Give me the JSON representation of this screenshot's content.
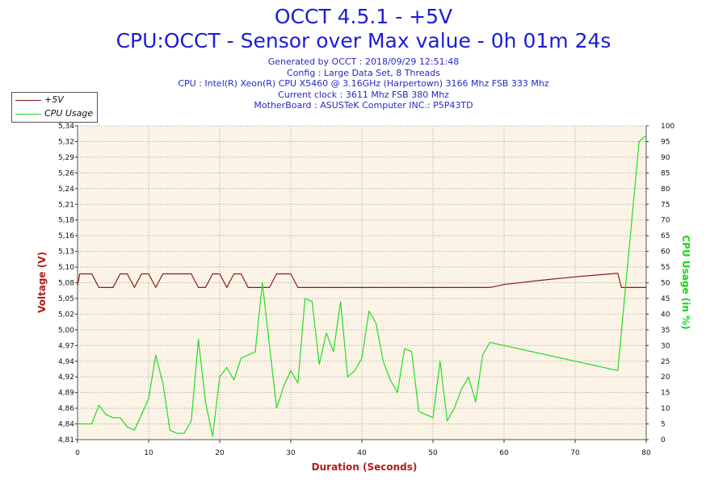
{
  "header": {
    "title": "OCCT 4.5.1 - +5V",
    "subtitle": "CPU:OCCT - Sensor over Max value - 0h 01m 24s",
    "info_lines": [
      "Generated by OCCT : 2018/09/29 12:51:48",
      "Config : Large Data Set, 8 Threads",
      "CPU : Intel(R) Xeon(R) CPU X5460 @ 3.16GHz (Harpertown) 3166 Mhz FSB 333 Mhz",
      "Current clock : 3611 Mhz FSB 380 Mhz",
      "MotherBoard : ASUSTeK Computer INC.: P5P43TD"
    ]
  },
  "colors": {
    "plot_background": "#fbf3e6",
    "grid": "#a0a0a0",
    "voltage": "#8b1a1a",
    "cpu": "#22dd22",
    "title": "#1c1cd6",
    "axis_title_left": "#b01c1c",
    "axis_title_right": "#19d419"
  },
  "chart_data": {
    "type": "line",
    "xlabel": "Duration (Seconds)",
    "ylabel": "Voltage (V)",
    "ylabel_right": "CPU Usage (in %)",
    "xlim": [
      0,
      80
    ],
    "ylim": [
      4.81,
      5.34
    ],
    "ylim_right": [
      0,
      100
    ],
    "x_ticks": [
      "0",
      "10",
      "20",
      "30",
      "40",
      "50",
      "60",
      "70",
      "80"
    ],
    "y_ticks": [
      "4,81",
      "4,84",
      "4,86",
      "4,89",
      "4,92",
      "4,94",
      "4,97",
      "5,00",
      "5,02",
      "5,05",
      "5,08",
      "5,10",
      "5,13",
      "5,16",
      "5,18",
      "5,21",
      "5,24",
      "5,26",
      "5,29",
      "5,32",
      "5,34"
    ],
    "y_ticks_right": [
      "0",
      "5",
      "10",
      "15",
      "20",
      "25",
      "30",
      "35",
      "40",
      "45",
      "50",
      "55",
      "60",
      "65",
      "70",
      "75",
      "80",
      "85",
      "90",
      "95",
      "100"
    ],
    "grid": true,
    "legend_position": "top-left",
    "series": [
      {
        "name": "+5V",
        "axis": "left",
        "x": [
          0,
          0.3,
          1,
          2,
          3,
          4,
          5,
          6,
          7,
          8,
          9,
          10,
          11,
          12,
          13,
          14,
          15,
          16,
          17,
          18,
          19,
          20,
          21,
          22,
          23,
          24,
          25,
          26,
          27,
          28,
          29,
          30,
          31,
          35,
          40,
          45,
          50,
          55,
          58,
          60,
          65,
          70,
          75,
          76,
          76.5,
          77,
          78,
          79,
          80
        ],
        "y": [
          5.07,
          5.09,
          5.09,
          5.09,
          5.067,
          5.067,
          5.067,
          5.09,
          5.09,
          5.067,
          5.09,
          5.09,
          5.067,
          5.09,
          5.09,
          5.09,
          5.09,
          5.09,
          5.067,
          5.067,
          5.09,
          5.09,
          5.067,
          5.09,
          5.09,
          5.067,
          5.067,
          5.067,
          5.067,
          5.09,
          5.09,
          5.09,
          5.067,
          5.067,
          5.067,
          5.067,
          5.067,
          5.067,
          5.067,
          5.072,
          5.079,
          5.085,
          5.09,
          5.091,
          5.067,
          5.067,
          5.067,
          5.067,
          5.067
        ]
      },
      {
        "name": "CPU Usage",
        "axis": "right",
        "x": [
          0,
          1,
          2,
          3,
          4,
          5,
          6,
          7,
          8,
          9,
          10,
          11,
          12,
          13,
          14,
          15,
          16,
          17,
          18,
          19,
          20,
          21,
          22,
          23,
          24,
          25,
          26,
          27,
          28,
          29,
          30,
          31,
          32,
          33,
          34,
          35,
          36,
          37,
          38,
          39,
          40,
          41,
          42,
          43,
          44,
          45,
          46,
          47,
          48,
          49,
          50,
          51,
          52,
          53,
          54,
          55,
          56,
          57,
          58,
          76,
          79,
          80
        ],
        "y": [
          5,
          5,
          5,
          11,
          8,
          7,
          7,
          4,
          3,
          8,
          13,
          27,
          18,
          3,
          2,
          2,
          6,
          32,
          12,
          1,
          20,
          23,
          19,
          26,
          27,
          28,
          50,
          30,
          10,
          17,
          22,
          18,
          45,
          44,
          24,
          34,
          28,
          44,
          20,
          22,
          26,
          41,
          37,
          25,
          19,
          15,
          29,
          28,
          9,
          8,
          7,
          25,
          6,
          10,
          16,
          20,
          12,
          27,
          31,
          22,
          95,
          97
        ]
      }
    ]
  }
}
